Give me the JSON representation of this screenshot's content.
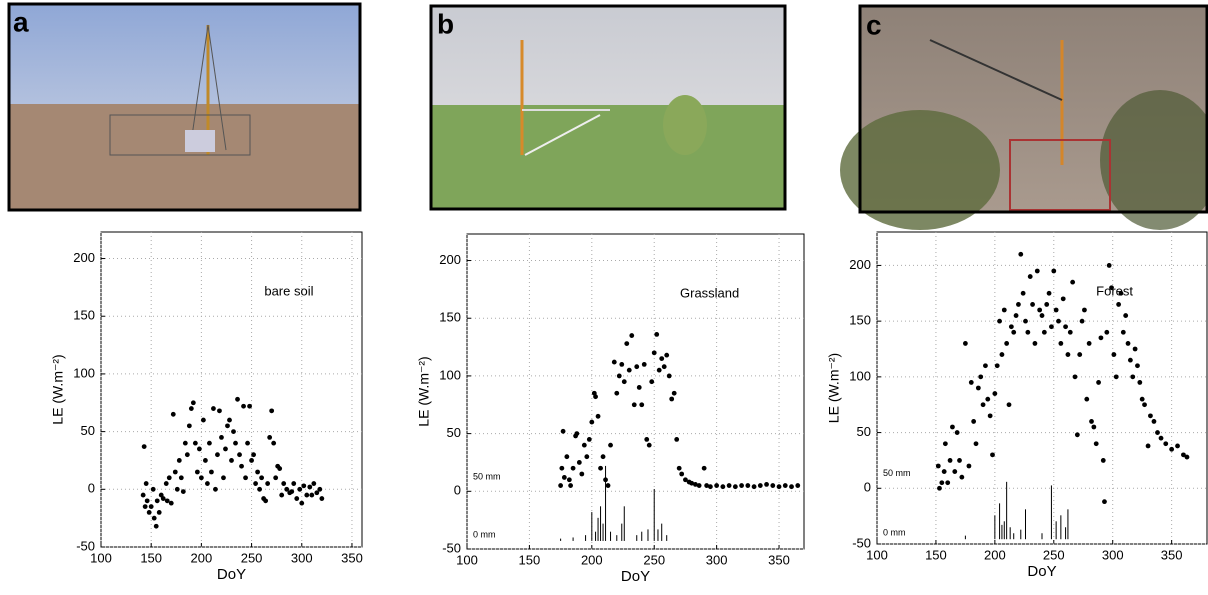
{
  "chart_data": [
    {
      "type": "scatter",
      "panel": "a",
      "annotation": "bare soil",
      "xlabel": "DoY",
      "ylabel": "LE (W.m⁻²)",
      "xlim": [
        100,
        360
      ],
      "ylim": [
        -50,
        223
      ],
      "xticks": [
        100,
        150,
        200,
        250,
        300,
        350
      ],
      "yticks": [
        -50,
        0,
        50,
        100,
        150,
        200
      ],
      "grid": true,
      "series": [
        {
          "color": "#000000",
          "x": [
            142,
            143,
            144,
            145,
            146,
            148,
            150,
            152,
            153,
            155,
            156,
            158,
            160,
            162,
            165,
            166,
            168,
            170,
            172,
            174,
            176,
            178,
            180,
            182,
            184,
            186,
            188,
            190,
            192,
            194,
            196,
            198,
            200,
            202,
            204,
            206,
            208,
            210,
            212,
            214,
            216,
            218,
            220,
            222,
            224,
            226,
            228,
            230,
            232,
            234,
            236,
            238,
            240,
            242,
            244,
            246,
            248,
            250,
            252,
            254,
            256,
            258,
            260,
            262,
            264,
            266,
            268,
            270,
            272,
            274,
            276,
            278,
            280,
            282,
            285,
            288,
            290,
            292,
            295,
            298,
            300,
            302,
            305,
            308,
            310,
            312,
            315,
            318,
            320
          ],
          "values": [
            -5,
            37,
            -15,
            5,
            -10,
            -20,
            -15,
            0,
            -25,
            -32,
            -10,
            -20,
            -5,
            -8,
            5,
            -10,
            10,
            -12,
            65,
            15,
            0,
            25,
            10,
            -2,
            40,
            30,
            55,
            70,
            75,
            40,
            15,
            35,
            10,
            60,
            25,
            5,
            40,
            15,
            70,
            0,
            30,
            68,
            45,
            10,
            35,
            55,
            60,
            25,
            50,
            40,
            78,
            30,
            20,
            72,
            10,
            40,
            72,
            25,
            30,
            5,
            15,
            0,
            10,
            -8,
            -10,
            5,
            45,
            68,
            40,
            10,
            20,
            18,
            -5,
            5,
            0,
            -3,
            -2,
            5,
            -8,
            0,
            -12,
            3,
            -5,
            2,
            -5,
            5,
            -3,
            0,
            -8
          ]
        }
      ]
    },
    {
      "type": "scatter",
      "panel": "b",
      "annotation": "Grassland",
      "xlabel": "DoY",
      "ylabel": "LE (W.m⁻²)",
      "xlim": [
        100,
        370
      ],
      "ylim": [
        -50,
        223
      ],
      "xticks": [
        100,
        150,
        200,
        250,
        300,
        350
      ],
      "yticks": [
        -50,
        0,
        50,
        100,
        150,
        200
      ],
      "grid": true,
      "y2lim": [
        -7,
        266
      ],
      "y2ticks": [
        {
          "value": 0,
          "label": "0 mm"
        },
        {
          "value": 50,
          "label": "50 mm"
        }
      ],
      "series": [
        {
          "color": "#000000",
          "x": [
            175,
            176,
            177,
            178,
            180,
            182,
            183,
            185,
            187,
            188,
            190,
            192,
            194,
            196,
            198,
            200,
            202,
            203,
            205,
            207,
            209,
            211,
            213,
            215,
            218,
            220,
            222,
            224,
            226,
            228,
            230,
            232,
            234,
            236,
            238,
            240,
            242,
            244,
            246,
            248,
            250,
            252,
            254,
            256,
            258,
            260,
            262,
            264,
            266,
            268,
            270,
            272,
            275,
            278,
            280,
            283,
            286,
            290,
            292,
            295,
            300,
            305,
            310,
            315,
            320,
            325,
            330,
            335,
            340,
            345,
            350,
            355,
            360,
            365
          ],
          "values": [
            5,
            20,
            52,
            12,
            30,
            10,
            5,
            20,
            48,
            50,
            25,
            15,
            40,
            30,
            45,
            60,
            85,
            82,
            65,
            20,
            30,
            10,
            5,
            40,
            112,
            85,
            100,
            110,
            95,
            128,
            105,
            135,
            75,
            108,
            90,
            75,
            110,
            45,
            40,
            95,
            120,
            136,
            105,
            115,
            108,
            118,
            100,
            80,
            85,
            45,
            20,
            15,
            10,
            8,
            7,
            6,
            5,
            20,
            5,
            4,
            5,
            4,
            5,
            4,
            5,
            5,
            4,
            5,
            6,
            5,
            4,
            5,
            4,
            5
          ]
        },
        {
          "type": "bar",
          "axis": "y2",
          "color": "#000000",
          "x": [
            175,
            185,
            195,
            200,
            203,
            205,
            207,
            209,
            211,
            215,
            220,
            224,
            226,
            236,
            240,
            245,
            250,
            253,
            256,
            260
          ],
          "values": [
            2,
            3,
            5,
            25,
            8,
            20,
            30,
            15,
            65,
            8,
            5,
            15,
            30,
            5,
            8,
            10,
            45,
            10,
            15,
            5
          ]
        }
      ]
    },
    {
      "type": "scatter",
      "panel": "c",
      "annotation": "Forest",
      "xlabel": "DoY",
      "ylabel": "LE (W.m⁻²)",
      "xlim": [
        100,
        380
      ],
      "ylim": [
        -50,
        230
      ],
      "xticks": [
        100,
        150,
        200,
        250,
        300,
        350
      ],
      "yticks": [
        -50,
        0,
        50,
        100,
        150,
        200
      ],
      "grid": true,
      "y2lim": [
        -4,
        257
      ],
      "y2ticks": [
        {
          "value": 0,
          "label": "0 mm"
        },
        {
          "value": 50,
          "label": "50 mm"
        }
      ],
      "series": [
        {
          "color": "#000000",
          "x": [
            152,
            153,
            155,
            157,
            158,
            160,
            162,
            164,
            166,
            168,
            170,
            172,
            175,
            178,
            180,
            182,
            184,
            186,
            188,
            190,
            192,
            194,
            196,
            198,
            200,
            202,
            204,
            206,
            208,
            210,
            212,
            214,
            216,
            218,
            220,
            222,
            224,
            226,
            228,
            230,
            232,
            234,
            236,
            238,
            240,
            242,
            244,
            246,
            248,
            250,
            252,
            254,
            256,
            258,
            260,
            262,
            264,
            266,
            268,
            270,
            272,
            274,
            276,
            278,
            280,
            282,
            284,
            286,
            288,
            290,
            292,
            293,
            295,
            297,
            299,
            301,
            303,
            305,
            307,
            309,
            311,
            313,
            315,
            317,
            319,
            321,
            323,
            325,
            327,
            330,
            332,
            335,
            338,
            341,
            345,
            350,
            355,
            360,
            363
          ],
          "values": [
            20,
            0,
            5,
            15,
            40,
            5,
            25,
            55,
            15,
            50,
            25,
            10,
            130,
            20,
            95,
            60,
            40,
            90,
            100,
            75,
            110,
            80,
            65,
            30,
            85,
            110,
            150,
            120,
            160,
            130,
            75,
            145,
            140,
            155,
            165,
            210,
            175,
            150,
            140,
            190,
            165,
            130,
            195,
            160,
            155,
            140,
            165,
            175,
            145,
            195,
            160,
            150,
            130,
            170,
            145,
            120,
            140,
            185,
            100,
            48,
            120,
            150,
            160,
            80,
            130,
            60,
            55,
            40,
            95,
            135,
            25,
            -12,
            140,
            200,
            180,
            120,
            100,
            165,
            175,
            140,
            155,
            130,
            115,
            100,
            125,
            110,
            95,
            80,
            75,
            38,
            65,
            60,
            50,
            45,
            40,
            35,
            38,
            30,
            28
          ]
        },
        {
          "type": "bar",
          "axis": "y2",
          "color": "#000000",
          "x": [
            175,
            200,
            204,
            206,
            208,
            210,
            213,
            216,
            222,
            226,
            240,
            248,
            252,
            256,
            260,
            262
          ],
          "values": [
            3,
            20,
            30,
            12,
            15,
            48,
            10,
            5,
            8,
            25,
            5,
            45,
            15,
            20,
            10,
            25
          ]
        }
      ]
    }
  ]
}
